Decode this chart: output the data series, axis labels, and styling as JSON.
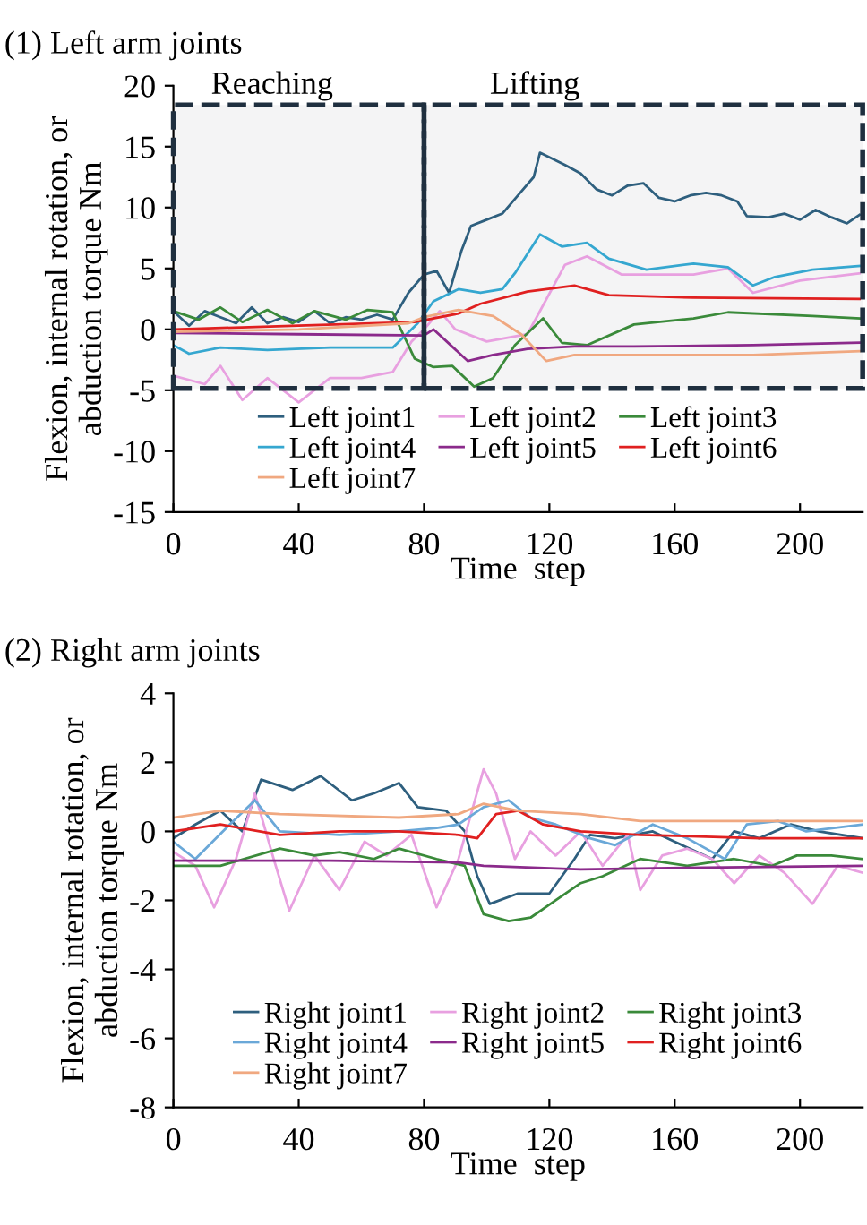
{
  "chart_data": [
    {
      "type": "line",
      "title": "(1) Left arm joints",
      "xlabel": "Time  step",
      "ylabel": "Flexion, internal rotation, or\nabduction torque Nm",
      "xlim": [
        0,
        220
      ],
      "xticks": [
        0,
        40,
        80,
        120,
        160,
        200
      ],
      "ylim": [
        -15,
        20
      ],
      "yticks": [
        -15,
        -10,
        -5,
        0,
        5,
        10,
        15,
        20
      ],
      "grid": false,
      "legend": "bottom",
      "marker": "none",
      "line_style": "solid",
      "bands": [
        {
          "axis": "x",
          "from": 0,
          "to": 80,
          "label": "Reaching",
          "color": "#1f2f3f"
        },
        {
          "axis": "x",
          "from": 80,
          "to": 220,
          "label": "Lifting",
          "color": "#1f2f3f"
        }
      ],
      "series": [
        {
          "name": "Left joint1",
          "color": "#2e5f7e",
          "x": [
            0,
            5,
            10,
            15,
            20,
            25,
            30,
            35,
            40,
            45,
            50,
            55,
            60,
            65,
            70,
            75,
            80,
            84,
            88,
            92,
            95,
            100,
            105,
            110,
            115,
            117,
            125,
            130,
            135,
            140,
            145,
            150,
            155,
            160,
            165,
            170,
            175,
            180,
            183,
            190,
            195,
            200,
            205,
            210,
            215,
            219
          ],
          "values": [
            1.5,
            0.3,
            1.5,
            1.0,
            0.5,
            1.8,
            0.5,
            1.0,
            0.6,
            1.5,
            0.5,
            1.0,
            0.8,
            1.2,
            0.8,
            3.0,
            4.5,
            4.8,
            3.0,
            6.5,
            8.5,
            9.0,
            9.5,
            11.0,
            12.5,
            14.5,
            13.5,
            12.8,
            11.5,
            11.0,
            11.8,
            12.0,
            10.8,
            10.5,
            11.0,
            11.2,
            11.0,
            10.5,
            9.3,
            9.2,
            9.5,
            9.0,
            9.8,
            9.2,
            8.7,
            9.4
          ]
        },
        {
          "name": "Left joint2",
          "color": "#e8a0e0",
          "x": [
            0,
            10,
            15,
            22,
            30,
            40,
            50,
            60,
            70,
            76,
            80,
            85,
            90,
            95,
            100,
            113,
            125,
            132,
            143,
            166,
            177,
            185,
            200,
            219
          ],
          "values": [
            -3.8,
            -4.5,
            -3.0,
            -5.8,
            -4.0,
            -6.0,
            -4.0,
            -4.0,
            -3.5,
            -1.0,
            0.0,
            1.5,
            0.0,
            -0.5,
            -1.0,
            -0.4,
            5.3,
            6.0,
            4.5,
            4.5,
            5.0,
            3.0,
            4.0,
            4.6
          ]
        },
        {
          "name": "Left joint3",
          "color": "#3a8a3a",
          "x": [
            0,
            8,
            15,
            22,
            30,
            38,
            45,
            55,
            62,
            70,
            77,
            83,
            89,
            96,
            102,
            109,
            118,
            124,
            132,
            147,
            166,
            177,
            204,
            219
          ],
          "values": [
            1.5,
            0.8,
            1.8,
            0.6,
            1.6,
            0.5,
            1.5,
            0.8,
            1.6,
            1.4,
            -2.4,
            -3.1,
            -3.0,
            -4.7,
            -4.0,
            -1.3,
            0.9,
            -1.1,
            -1.3,
            0.4,
            0.9,
            1.4,
            1.1,
            0.9
          ]
        },
        {
          "name": "Left joint4",
          "color": "#35a7d0",
          "x": [
            0,
            5,
            15,
            30,
            50,
            70,
            78,
            83,
            91,
            98,
            105,
            109,
            117,
            124,
            132,
            139,
            151,
            166,
            177,
            185,
            192,
            204,
            219
          ],
          "values": [
            -1.3,
            -2.0,
            -1.5,
            -1.7,
            -1.5,
            -1.5,
            0.5,
            2.3,
            3.3,
            3.0,
            3.3,
            4.6,
            7.8,
            6.8,
            7.1,
            5.8,
            4.9,
            5.4,
            5.1,
            3.6,
            4.3,
            4.9,
            5.2
          ]
        },
        {
          "name": "Left joint5",
          "color": "#8b2a8b",
          "x": [
            0,
            40,
            80,
            83,
            94,
            102,
            113,
            128,
            147,
            185,
            219
          ],
          "values": [
            -0.3,
            -0.4,
            -0.5,
            0.0,
            -2.6,
            -2.1,
            -1.6,
            -1.4,
            -1.4,
            -1.3,
            -1.1
          ]
        },
        {
          "name": "Left joint6",
          "color": "#e02020",
          "x": [
            0,
            40,
            77,
            91,
            98,
            113,
            128,
            139,
            166,
            219
          ],
          "values": [
            0.0,
            0.3,
            0.6,
            1.3,
            2.1,
            3.1,
            3.6,
            2.8,
            2.6,
            2.5
          ]
        },
        {
          "name": "Left joint7",
          "color": "#f0a880",
          "x": [
            0,
            40,
            75,
            80,
            91,
            102,
            111,
            119,
            128,
            147,
            185,
            219
          ],
          "values": [
            -0.2,
            0.0,
            0.5,
            1.0,
            1.6,
            1.1,
            -0.4,
            -2.6,
            -2.1,
            -2.1,
            -2.1,
            -1.8
          ]
        }
      ]
    },
    {
      "type": "line",
      "title": "(2) Right arm joints",
      "xlabel": "Time  step",
      "ylabel": "Flexion, internal rotation, or\nabduction torque Nm",
      "xlim": [
        0,
        220
      ],
      "xticks": [
        0,
        40,
        80,
        120,
        160,
        200
      ],
      "ylim": [
        -8,
        4
      ],
      "yticks": [
        -8,
        -6,
        -4,
        -2,
        0,
        2,
        4
      ],
      "grid": false,
      "legend": "bottom",
      "marker": "none",
      "line_style": "solid",
      "series": [
        {
          "name": "Right joint1",
          "color": "#2e5f7e",
          "x": [
            0,
            7,
            15,
            22,
            28,
            38,
            47,
            57,
            64,
            72,
            78,
            87,
            93,
            97,
            101,
            110,
            120,
            128,
            133,
            141,
            153,
            160,
            172,
            179,
            187,
            197,
            206,
            220
          ],
          "values": [
            -0.2,
            0.2,
            0.6,
            0.0,
            1.5,
            1.2,
            1.6,
            0.9,
            1.1,
            1.4,
            0.7,
            0.6,
            0.0,
            -1.3,
            -2.1,
            -1.8,
            -1.8,
            -0.8,
            -0.1,
            -0.2,
            0.0,
            -0.3,
            -0.8,
            0.0,
            -0.2,
            0.2,
            0.0,
            -0.2
          ]
        },
        {
          "name": "Right joint2",
          "color": "#e8a0e0",
          "x": [
            0,
            7,
            13,
            20,
            26,
            32,
            37,
            45,
            53,
            61,
            68,
            76,
            84,
            91,
            99,
            103,
            109,
            114,
            122,
            130,
            137,
            145,
            149,
            156,
            164,
            172,
            179,
            187,
            195,
            204,
            212,
            220
          ],
          "values": [
            -0.6,
            -1.0,
            -2.2,
            -0.8,
            1.1,
            -0.8,
            -2.3,
            -0.7,
            -1.7,
            -0.3,
            -0.7,
            -0.1,
            -2.2,
            -0.8,
            1.8,
            1.1,
            -0.8,
            0.0,
            -0.7,
            0.0,
            -1.0,
            -0.1,
            -1.7,
            -0.7,
            -0.5,
            -0.8,
            -1.5,
            -0.7,
            -1.2,
            -2.1,
            -1.0,
            -1.2
          ]
        },
        {
          "name": "Right joint3",
          "color": "#3a8a3a",
          "x": [
            0,
            15,
            34,
            45,
            53,
            64,
            72,
            84,
            93,
            99,
            107,
            114,
            122,
            130,
            137,
            149,
            164,
            179,
            191,
            199,
            210,
            220
          ],
          "values": [
            -1.0,
            -1.0,
            -0.5,
            -0.7,
            -0.6,
            -0.8,
            -0.5,
            -0.8,
            -1.0,
            -2.4,
            -2.6,
            -2.5,
            -2.0,
            -1.5,
            -1.3,
            -0.8,
            -1.0,
            -0.8,
            -1.0,
            -0.7,
            -0.7,
            -0.8
          ]
        },
        {
          "name": "Right joint4",
          "color": "#6aa8d8",
          "x": [
            0,
            7,
            18,
            26,
            34,
            53,
            72,
            84,
            91,
            99,
            107,
            114,
            122,
            133,
            141,
            153,
            164,
            176,
            183,
            193,
            202,
            220
          ],
          "values": [
            -0.3,
            -0.8,
            0.2,
            0.9,
            0.0,
            -0.1,
            0.0,
            0.1,
            0.2,
            0.7,
            0.9,
            0.4,
            0.2,
            -0.2,
            -0.4,
            0.2,
            -0.2,
            -0.8,
            0.2,
            0.3,
            0.0,
            0.2
          ]
        },
        {
          "name": "Right joint5",
          "color": "#8b2a8b",
          "x": [
            0,
            50,
            91,
            99,
            130,
            170,
            220
          ],
          "values": [
            -0.85,
            -0.85,
            -0.9,
            -1.0,
            -1.1,
            -1.05,
            -1.0
          ]
        },
        {
          "name": "Right joint6",
          "color": "#e02020",
          "x": [
            0,
            15,
            34,
            53,
            72,
            91,
            97,
            103,
            110,
            118,
            130,
            149,
            187,
            220
          ],
          "values": [
            0.0,
            0.2,
            -0.1,
            0.0,
            0.0,
            -0.1,
            -0.2,
            0.5,
            0.6,
            0.2,
            0.0,
            -0.1,
            -0.2,
            -0.2
          ]
        },
        {
          "name": "Right joint7",
          "color": "#f0a880",
          "x": [
            0,
            15,
            34,
            72,
            91,
            99,
            110,
            130,
            149,
            220
          ],
          "values": [
            0.4,
            0.6,
            0.5,
            0.4,
            0.5,
            0.8,
            0.6,
            0.5,
            0.3,
            0.3
          ]
        }
      ]
    }
  ]
}
